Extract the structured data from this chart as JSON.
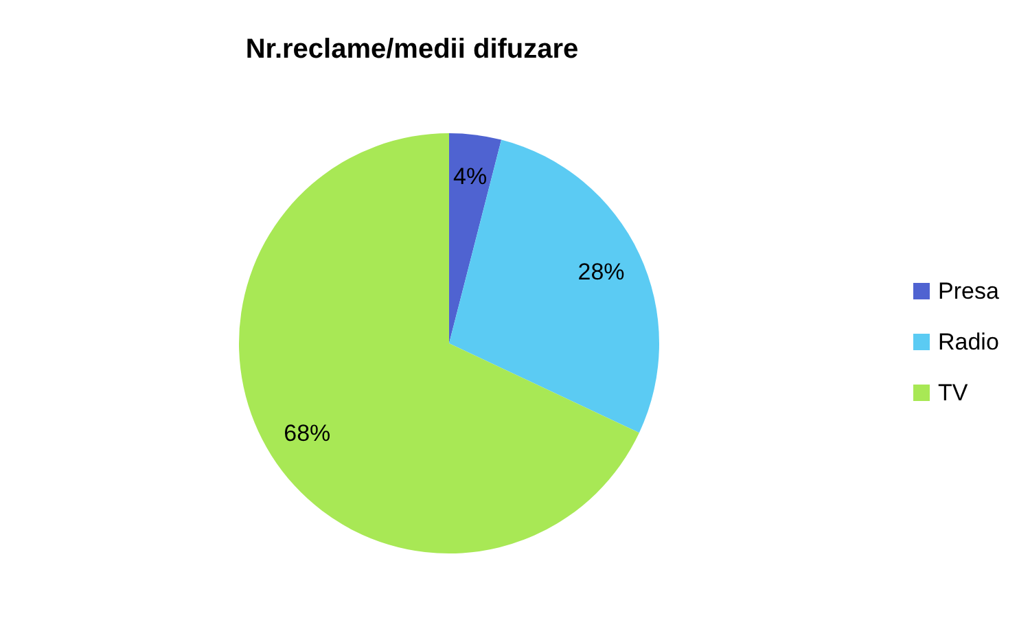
{
  "chart_data": {
    "type": "pie",
    "title": "Nr.reclame/medii difuzare",
    "categories": [
      "Presa",
      "Radio",
      "TV"
    ],
    "values": [
      4,
      28,
      68
    ],
    "colors": [
      "#4f63d1",
      "#5bcbf3",
      "#a8e855"
    ],
    "value_labels": [
      "4%",
      "28%",
      "68%"
    ],
    "legend": "right"
  }
}
